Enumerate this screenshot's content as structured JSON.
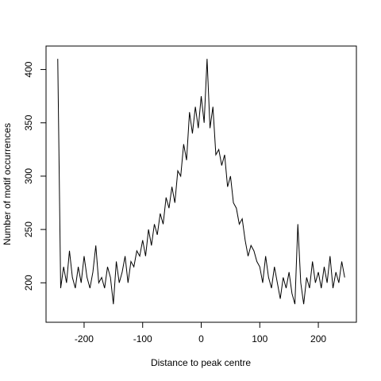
{
  "chart_data": {
    "type": "line",
    "x_label": "Distance to peak centre",
    "y_label": "Number of motif occurrences",
    "x": [
      -245,
      -240,
      -235,
      -230,
      -225,
      -220,
      -215,
      -210,
      -205,
      -200,
      -195,
      -190,
      -185,
      -180,
      -175,
      -170,
      -165,
      -160,
      -155,
      -150,
      -145,
      -140,
      -135,
      -130,
      -125,
      -120,
      -115,
      -110,
      -105,
      -100,
      -95,
      -90,
      -85,
      -80,
      -75,
      -70,
      -65,
      -60,
      -55,
      -50,
      -45,
      -40,
      -35,
      -30,
      -25,
      -20,
      -15,
      -10,
      -5,
      0,
      5,
      10,
      15,
      20,
      25,
      30,
      35,
      40,
      45,
      50,
      55,
      60,
      65,
      70,
      75,
      80,
      85,
      90,
      95,
      100,
      105,
      110,
      115,
      120,
      125,
      130,
      135,
      140,
      145,
      150,
      155,
      160,
      165,
      170,
      175,
      180,
      185,
      190,
      195,
      200,
      205,
      210,
      215,
      220,
      225,
      230,
      235,
      240,
      245
    ],
    "series": [
      {
        "color": "#000000",
        "values": [
          410,
          195,
          215,
          200,
          230,
          205,
          195,
          215,
          200,
          225,
          205,
          195,
          210,
          235,
          200,
          205,
          195,
          215,
          205,
          180,
          220,
          200,
          210,
          225,
          200,
          220,
          215,
          230,
          225,
          240,
          225,
          250,
          235,
          255,
          245,
          265,
          255,
          280,
          270,
          290,
          275,
          305,
          300,
          330,
          315,
          360,
          340,
          365,
          345,
          375,
          350,
          410,
          345,
          365,
          320,
          325,
          310,
          320,
          290,
          300,
          275,
          270,
          255,
          260,
          240,
          225,
          235,
          230,
          220,
          215,
          200,
          225,
          205,
          195,
          215,
          200,
          185,
          205,
          195,
          210,
          190,
          180,
          255,
          200,
          180,
          205,
          195,
          220,
          200,
          210,
          195,
          215,
          200,
          225,
          195,
          210,
          200,
          220,
          205
        ]
      }
    ],
    "xlim": [
      -265,
      265
    ],
    "ylim": [
      163,
      422
    ],
    "xticks": [
      -200,
      -100,
      0,
      100,
      200
    ],
    "yticks": [
      200,
      250,
      300,
      350,
      400
    ]
  }
}
